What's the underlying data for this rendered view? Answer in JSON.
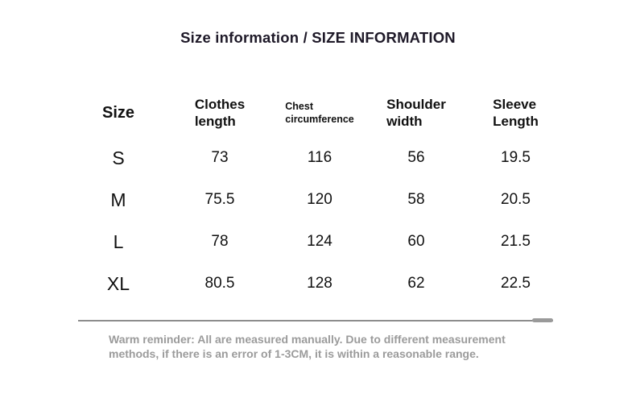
{
  "title": "Size information / SIZE INFORMATION",
  "table": {
    "headers": [
      "Size",
      "Clothes\nlength",
      "Chest\ncircumference",
      "Shoulder\nwidth",
      "Sleeve\nLength"
    ],
    "rows": [
      {
        "size": "S",
        "values": [
          "73",
          "116",
          "56",
          "19.5"
        ]
      },
      {
        "size": "M",
        "values": [
          "75.5",
          "120",
          "58",
          "20.5"
        ]
      },
      {
        "size": "L",
        "values": [
          "78",
          "124",
          "60",
          "21.5"
        ]
      },
      {
        "size": "XL",
        "values": [
          "80.5",
          "128",
          "62",
          "22.5"
        ]
      }
    ]
  },
  "reminder": "Warm reminder: All are measured manually. Due to different measurement methods, if there is an error of 1-3CM, it is within a reasonable range.",
  "colors": {
    "title_text": "#1e1928",
    "table_text": "#111111",
    "reminder_text": "#9b9b9b",
    "divider": "#8d8d8d"
  }
}
